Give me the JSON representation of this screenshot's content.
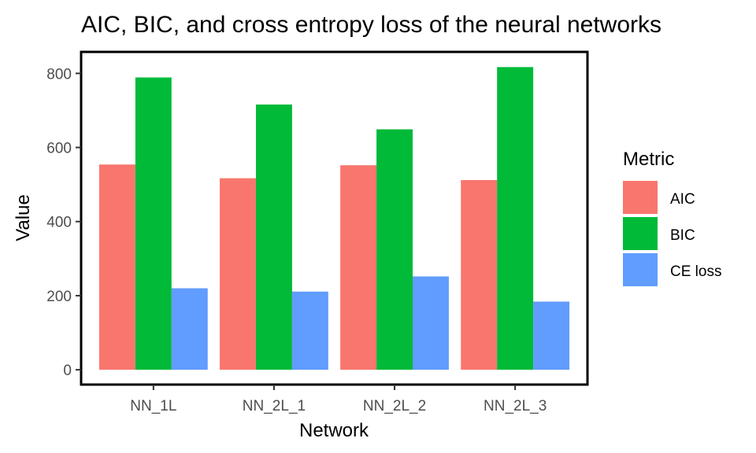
{
  "chart_data": {
    "type": "bar",
    "title": "AIC, BIC, and cross entropy loss of the neural networks",
    "xlabel": "Network",
    "ylabel": "Value",
    "categories": [
      "NN_1L",
      "NN_2L_1",
      "NN_2L_2",
      "NN_2L_3"
    ],
    "series": [
      {
        "name": "AIC",
        "color": "#F8766D",
        "values": [
          554,
          517,
          552,
          512
        ]
      },
      {
        "name": "BIC",
        "color": "#00BA38",
        "values": [
          789,
          716,
          649,
          817
        ]
      },
      {
        "name": "CE loss",
        "color": "#619CFF",
        "values": [
          220,
          211,
          252,
          184
        ]
      }
    ],
    "ylim": [
      -40,
      858
    ],
    "yticks": [
      0,
      200,
      400,
      600,
      800
    ],
    "legend": {
      "title": "Metric",
      "placement": "right"
    },
    "grid": false
  }
}
